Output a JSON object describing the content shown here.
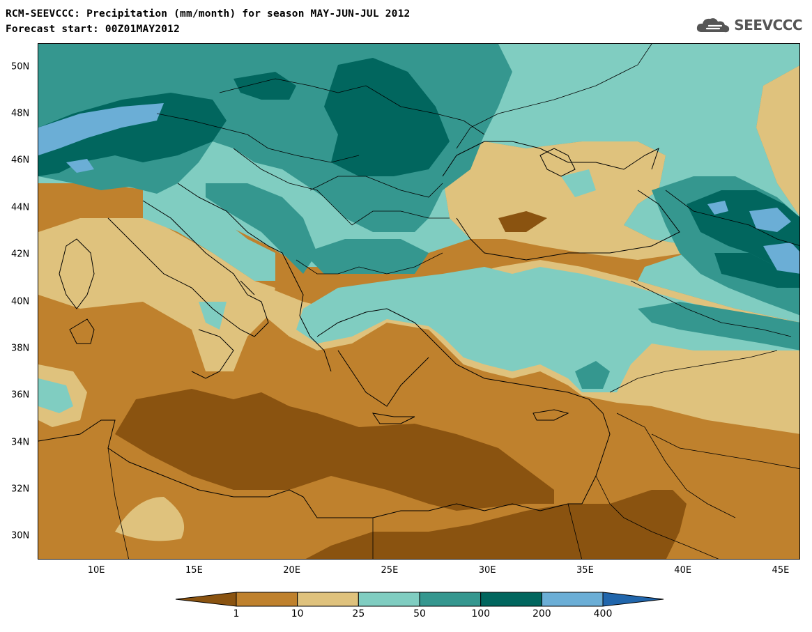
{
  "header": {
    "title_line1": "RCM-SEEVCCC: Precipitation (mm/month) for season MAY-JUN-JUL 2012",
    "title_line2": "Forecast start: 00Z01MAY2012",
    "logo_text": "SEEVCCC",
    "logo_icon": "cloud-icon"
  },
  "map": {
    "extent": {
      "lon_min": 7,
      "lon_max": 46,
      "lat_min": 29,
      "lat_max": 51
    },
    "lat_ticks": [
      {
        "value": 50,
        "label": "50N"
      },
      {
        "value": 48,
        "label": "48N"
      },
      {
        "value": 46,
        "label": "46N"
      },
      {
        "value": 44,
        "label": "44N"
      },
      {
        "value": 42,
        "label": "42N"
      },
      {
        "value": 40,
        "label": "40N"
      },
      {
        "value": 38,
        "label": "38N"
      },
      {
        "value": 36,
        "label": "36N"
      },
      {
        "value": 34,
        "label": "34N"
      },
      {
        "value": 32,
        "label": "32N"
      },
      {
        "value": 30,
        "label": "30N"
      }
    ],
    "lon_ticks": [
      {
        "value": 10,
        "label": "10E"
      },
      {
        "value": 15,
        "label": "15E"
      },
      {
        "value": 20,
        "label": "20E"
      },
      {
        "value": 25,
        "label": "25E"
      },
      {
        "value": 30,
        "label": "30E"
      },
      {
        "value": 35,
        "label": "35E"
      },
      {
        "value": 40,
        "label": "40E"
      },
      {
        "value": 45,
        "label": "45E"
      }
    ]
  },
  "legend": {
    "colors": [
      "#8a5310",
      "#bf812d",
      "#dfc27d",
      "#80cdc1",
      "#35978f",
      "#01665e",
      "#6baed6",
      "#2166ac"
    ],
    "boundaries": [
      "1",
      "10",
      "25",
      "50",
      "100",
      "200",
      "400"
    ],
    "extend": "both"
  }
}
